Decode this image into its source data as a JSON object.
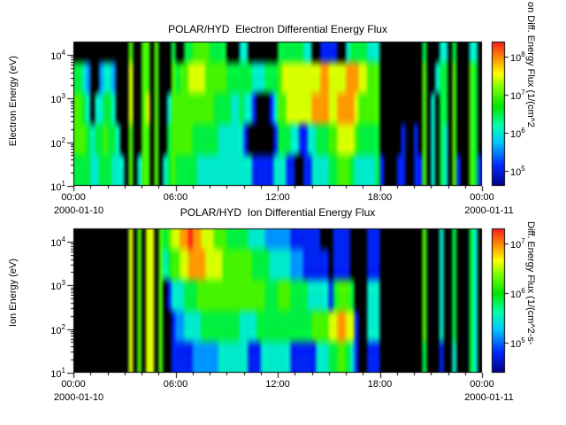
{
  "page": {
    "background": "#ffffff",
    "plot_background": "#000000",
    "frame_color": "#000000",
    "text_color": "#000000"
  },
  "colormap": {
    "stops": [
      {
        "t": 0.0,
        "color": "#00008c"
      },
      {
        "t": 0.14,
        "color": "#0028ff"
      },
      {
        "t": 0.3,
        "color": "#00c8ff"
      },
      {
        "t": 0.42,
        "color": "#00ffaa"
      },
      {
        "t": 0.55,
        "color": "#00e600"
      },
      {
        "t": 0.68,
        "color": "#78ff00"
      },
      {
        "t": 0.78,
        "color": "#ffff00"
      },
      {
        "t": 0.88,
        "color": "#ff9600"
      },
      {
        "t": 1.0,
        "color": "#ff1e1e"
      }
    ]
  },
  "chart_data": [
    {
      "type": "heatmap",
      "title": "POLAR/HYD  Electron Differential Energy Flux",
      "ylabel": "Electron Energy (eV)",
      "y_ticks_exp": [
        1,
        2,
        3,
        4
      ],
      "y_log_range": [
        1.0,
        4.301
      ],
      "x_tick_labels": [
        "00:00",
        "06:00",
        "12:00",
        "18:00",
        "00:00"
      ],
      "x_tick_hours": [
        0,
        6,
        12,
        18,
        24
      ],
      "x_minor_tick_hours": 1,
      "x_date_left": "2000-01-10",
      "x_date_right": "2000-01-11",
      "colorbar": {
        "label": "on Diff. Energy Flux (1/(cm^2",
        "ticks_exp": [
          5,
          6,
          7,
          8
        ],
        "log_range": [
          4.6,
          8.4
        ]
      },
      "grid": {
        "cols": 96,
        "time_bin_minutes": 15,
        "encoding": "Each row string has one char per 15-min bin starting 00:00. '0' = below threshold (black). Digit d (1-9) = log10 flux = cmin + (d-1)/8*(cmax-cmin) over colorbar.log_range.",
        "row_groups": {
          "A": "000000000000060066060005005566665555000440000000555555440022220045555444000000000050004405000440",
          "B": "554300344300070066060006566777766666555555444555677777777788777788877666000000000060045506000650",
          "C": "665404455400070067060046666666666555544544200024667777778888778888766666000000000060405506000650",
          "D": "666545565540060066060056666655555544444420000002555442244555667777655555000002002060405406000650",
          "E": "555544555444060466060456555554444444444444222224442200224444556665444445200022002260405406200652"
        },
        "row_order_top_to_bottom": [
          "A",
          "A",
          "B",
          "B",
          "B",
          "C",
          "C",
          "C",
          "D",
          "D",
          "D",
          "E",
          "E",
          "E"
        ]
      }
    },
    {
      "type": "heatmap",
      "title": "POLAR/HYD  Ion Differential Energy Flux",
      "ylabel": "Ion Energy (eV)",
      "y_ticks_exp": [
        1,
        2,
        3,
        4
      ],
      "y_log_range": [
        1.0,
        4.301
      ],
      "x_tick_labels": [
        "00:00",
        "06:00",
        "12:00",
        "18:00",
        "00:00"
      ],
      "x_tick_hours": [
        0,
        6,
        12,
        18,
        24
      ],
      "x_minor_tick_hours": 1,
      "x_date_left": "2000-01-10",
      "x_date_right": "2000-01-11",
      "colorbar": {
        "label": "Diff. Energy Flux (1/(cm^2-s-",
        "ticks_exp": [
          5,
          6,
          7
        ],
        "log_range": [
          4.4,
          7.3
        ]
      },
      "grid": {
        "cols": 96,
        "time_bin_minutes": 15,
        "encoding": "Each row string has one char per 15-min bin starting 00:00. '0' = below threshold (black). Digit d (1-9) = log10 flux = cmin + (d-1)/8*(cmax-cmin) over colorbar.log_range.",
        "row_groups": {
          "A": "000000000000070607706567788988777666555554444333333222222200022220000222000000000060004005000540",
          "B": "000000000000070607706456677888877776666666555544444333222222022220000222000000000060004005000540",
          "C": "000000000000070607706024445556666666666666666555666555544444256665000444000000000060004005000540",
          "D": "000000000000070607706002334444555555555444455555555555556666778877200444000000000060004005000540",
          "E": "000000000000070607706002222233333344444442224444444222222444556654200222000000000050002004000540"
        },
        "row_order_top_to_bottom": [
          "A",
          "A",
          "B",
          "B",
          "B",
          "C",
          "C",
          "C",
          "D",
          "D",
          "D",
          "E",
          "E",
          "E"
        ]
      }
    }
  ]
}
